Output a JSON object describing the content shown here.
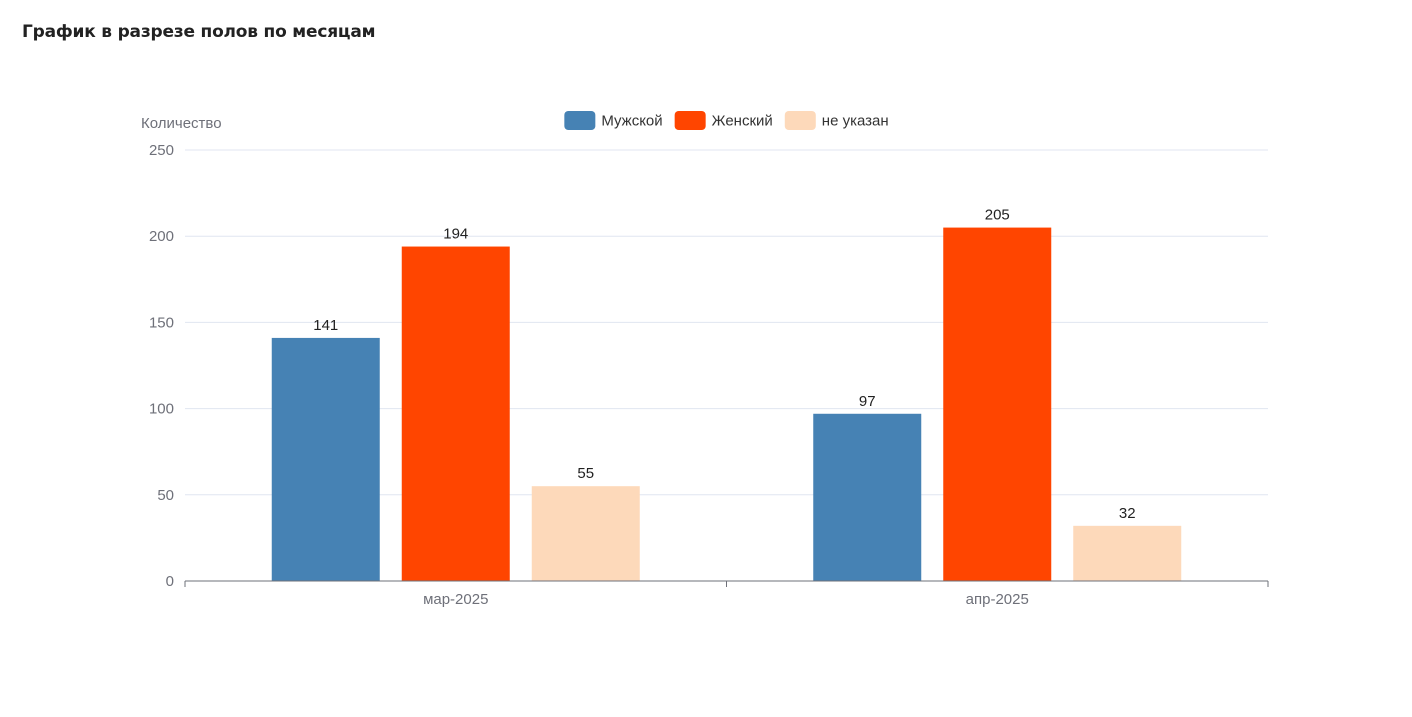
{
  "page": {
    "title": "График в разрезе полов по месяцам"
  },
  "chart_data": {
    "type": "bar",
    "title": "График в разрезе полов по месяцам",
    "xlabel": "",
    "ylabel": "Количество",
    "categories": [
      "мар-2025",
      "апр-2025"
    ],
    "series": [
      {
        "name": "Мужской",
        "values": [
          141,
          97
        ],
        "color": "#4682B4"
      },
      {
        "name": "Женский",
        "values": [
          194,
          205
        ],
        "color": "#FF4500"
      },
      {
        "name": "не указан",
        "values": [
          55,
          32
        ],
        "color": "#FDD9BA"
      }
    ],
    "ylim": [
      0,
      250
    ],
    "yticks": [
      0,
      50,
      100,
      150,
      200,
      250
    ],
    "grid": true,
    "legend_position": "top-center",
    "data_labels": true
  }
}
